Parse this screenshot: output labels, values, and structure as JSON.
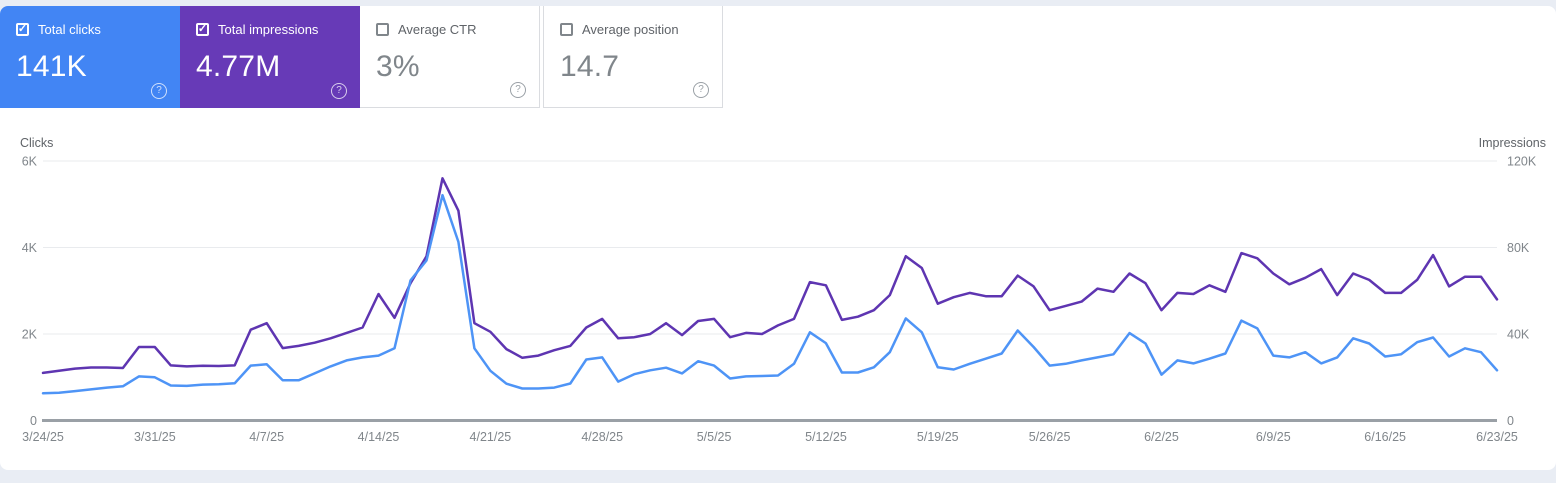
{
  "cards": [
    {
      "label": "Total clicks",
      "value": "141K",
      "checked": true,
      "selected": true,
      "bg": "#4285f4"
    },
    {
      "label": "Total impressions",
      "value": "4.77M",
      "checked": true,
      "selected": true,
      "bg": "#673ab7"
    },
    {
      "label": "Average CTR",
      "value": "3%",
      "checked": false,
      "selected": false,
      "bg": "#ffffff"
    },
    {
      "label": "Average position",
      "value": "14.7",
      "checked": false,
      "selected": false,
      "bg": "#ffffff"
    }
  ],
  "colors": {
    "grid": "#e9ebee",
    "axis": "#9aa0a6",
    "clicks_line": "#4e94f6",
    "impressions_line": "#5e35b1"
  },
  "chart_data": {
    "type": "line",
    "title": "",
    "x_label_interval_days": 7,
    "x_labels": [
      "3/24/25",
      "3/31/25",
      "4/7/25",
      "4/14/25",
      "4/21/25",
      "4/28/25",
      "5/5/25",
      "5/12/25",
      "5/19/25",
      "5/26/25",
      "6/2/25",
      "6/9/25",
      "6/16/25",
      "6/23/25"
    ],
    "axes": {
      "left": {
        "title": "Clicks",
        "max": 6000,
        "ticks": [
          {
            "v": 0,
            "label": "0"
          },
          {
            "v": 2000,
            "label": "2K"
          },
          {
            "v": 4000,
            "label": "4K"
          },
          {
            "v": 6000,
            "label": "6K"
          }
        ]
      },
      "right": {
        "title": "Impressions",
        "max": 120000,
        "ticks": [
          {
            "v": 0,
            "label": "0"
          },
          {
            "v": 40000,
            "label": "40K"
          },
          {
            "v": 80000,
            "label": "80K"
          },
          {
            "v": 120000,
            "label": "120K"
          }
        ]
      }
    },
    "series": [
      {
        "name": "Clicks",
        "axis": "left",
        "color": "#4e94f6",
        "values": [
          630,
          640,
          680,
          720,
          760,
          790,
          1020,
          1000,
          810,
          800,
          830,
          840,
          860,
          1270,
          1300,
          930,
          930,
          1090,
          1250,
          1390,
          1460,
          1500,
          1670,
          3240,
          3700,
          5210,
          4130,
          1670,
          1150,
          850,
          740,
          740,
          760,
          855,
          1410,
          1460,
          900,
          1070,
          1160,
          1220,
          1090,
          1370,
          1270,
          970,
          1020,
          1030,
          1040,
          1310,
          2040,
          1790,
          1110,
          1110,
          1230,
          1580,
          2360,
          2040,
          1230,
          1180,
          1310,
          1430,
          1550,
          2080,
          1700,
          1270,
          1310,
          1390,
          1460,
          1530,
          2020,
          1780,
          1060,
          1390,
          1320,
          1430,
          1550,
          2310,
          2130,
          1500,
          1460,
          1580,
          1320,
          1460,
          1900,
          1780,
          1480,
          1530,
          1810,
          1920,
          1480,
          1670,
          1580,
          1160
        ]
      },
      {
        "name": "Impressions",
        "axis": "right",
        "color": "#5e35b1",
        "values": [
          22000,
          23000,
          24000,
          24500,
          24500,
          24300,
          34000,
          34000,
          25500,
          25000,
          25300,
          25200,
          25500,
          42000,
          45000,
          33500,
          34500,
          36000,
          38000,
          40500,
          43000,
          58500,
          47500,
          63500,
          76000,
          112000,
          97000,
          45000,
          41000,
          33000,
          29000,
          30000,
          32500,
          34500,
          43000,
          47000,
          38000,
          38500,
          40000,
          45000,
          39500,
          46000,
          47000,
          38500,
          40500,
          40000,
          44000,
          47000,
          64000,
          62500,
          46500,
          48000,
          51000,
          58000,
          76000,
          70500,
          54000,
          57000,
          59000,
          57500,
          57500,
          67000,
          62000,
          51000,
          53000,
          55000,
          61000,
          59500,
          68000,
          63500,
          51000,
          59000,
          58500,
          62500,
          59500,
          77400,
          75000,
          68000,
          63000,
          66000,
          70000,
          58000,
          68000,
          65000,
          59000,
          59000,
          65000,
          76500,
          62000,
          66500,
          66500,
          56000
        ]
      }
    ]
  }
}
